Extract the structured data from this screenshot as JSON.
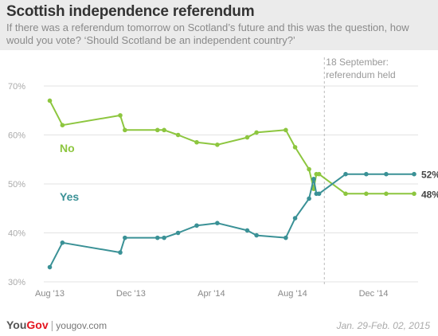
{
  "header": {
    "title": "Scottish independence referendum",
    "subtitle": "If there was a referendum tomorrow on Scotland’s future and this was the question, how would you vote? ‘Should Scotland be an independent country?’"
  },
  "footer": {
    "brand_you": "You",
    "brand_gov": "Gov",
    "separator": "|",
    "site": "yougov.com",
    "date_range": "Jan. 29-Feb. 02, 2015"
  },
  "chart_data": {
    "type": "line",
    "title": "Scottish independence referendum",
    "ylim": [
      30,
      70
    ],
    "yticks": [
      30,
      40,
      50,
      60,
      70
    ],
    "ytick_labels": [
      "30%",
      "40%",
      "50%",
      "60%",
      "70%"
    ],
    "xlim": [
      "2013-07-23",
      "2015-02-06"
    ],
    "xticks": [
      {
        "date": "2013-08-01",
        "label": "Aug '13"
      },
      {
        "date": "2013-12-01",
        "label": "Dec '13"
      },
      {
        "date": "2014-04-01",
        "label": "Apr '14"
      },
      {
        "date": "2014-08-01",
        "label": "Aug '14"
      },
      {
        "date": "2014-12-01",
        "label": "Dec '14"
      }
    ],
    "grid": true,
    "annotation": {
      "date": "2014-09-18",
      "lines": [
        "18 September:",
        "referendum held"
      ]
    },
    "colors": {
      "no": "#8dc63f",
      "yes": "#3a9196",
      "annotation_line": "#bbbbbb",
      "grid": "#e3e3e3"
    },
    "series": [
      {
        "name": "No",
        "end_label": "48%",
        "points": [
          [
            "2013-08-01",
            67
          ],
          [
            "2013-08-20",
            62
          ],
          [
            "2013-11-15",
            64
          ],
          [
            "2013-11-22",
            61
          ],
          [
            "2014-01-10",
            61
          ],
          [
            "2014-01-20",
            61
          ],
          [
            "2014-02-10",
            60
          ],
          [
            "2014-03-10",
            58.5
          ],
          [
            "2014-04-10",
            58
          ],
          [
            "2014-05-25",
            59.5
          ],
          [
            "2014-06-08",
            60.5
          ],
          [
            "2014-07-22",
            61
          ],
          [
            "2014-08-05",
            57.5
          ],
          [
            "2014-08-26",
            53
          ],
          [
            "2014-09-02",
            49
          ],
          [
            "2014-09-06",
            52
          ],
          [
            "2014-09-10",
            52
          ],
          [
            "2014-10-20",
            48
          ],
          [
            "2014-11-20",
            48
          ],
          [
            "2014-12-20",
            48
          ],
          [
            "2015-01-31",
            48
          ]
        ]
      },
      {
        "name": "Yes",
        "end_label": "52%",
        "points": [
          [
            "2013-08-01",
            33
          ],
          [
            "2013-08-20",
            38
          ],
          [
            "2013-11-15",
            36
          ],
          [
            "2013-11-22",
            39
          ],
          [
            "2014-01-10",
            39
          ],
          [
            "2014-01-20",
            39
          ],
          [
            "2014-02-10",
            40
          ],
          [
            "2014-03-10",
            41.5
          ],
          [
            "2014-04-10",
            42
          ],
          [
            "2014-05-25",
            40.5
          ],
          [
            "2014-06-08",
            39.5
          ],
          [
            "2014-07-22",
            39
          ],
          [
            "2014-08-05",
            43
          ],
          [
            "2014-08-26",
            47
          ],
          [
            "2014-09-02",
            51
          ],
          [
            "2014-09-06",
            48
          ],
          [
            "2014-09-10",
            48
          ],
          [
            "2014-10-20",
            52
          ],
          [
            "2014-11-20",
            52
          ],
          [
            "2014-12-20",
            52
          ],
          [
            "2015-01-31",
            52
          ]
        ]
      }
    ]
  }
}
